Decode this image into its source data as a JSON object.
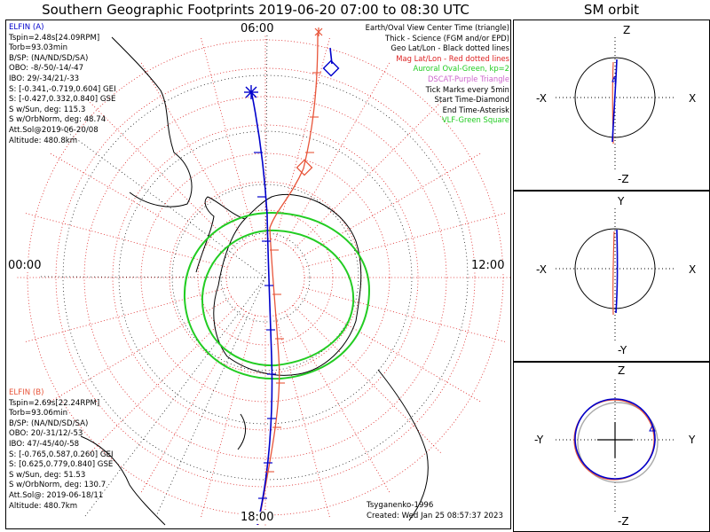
{
  "header": {
    "title": "Southern Geographic Footprints 2019-06-20 07:00 to 08:30 UTC",
    "sm_title": "SM orbit"
  },
  "map": {
    "mlt_labels": {
      "top": "06:00",
      "left": "00:00",
      "right": "12:00",
      "bottom": "18:00"
    },
    "colors": {
      "elfin_a": "#0000cc",
      "elfin_b": "#e8553a",
      "auroral_oval": "#22cc22",
      "mag_grid": "#dd2222",
      "geo_grid": "#000000",
      "land": "#000000"
    }
  },
  "elfin_a": {
    "name": "ELFIN (A)",
    "lines": [
      "Tspin=2.48s[24.09RPM]",
      "Torb=93.03min",
      "B/SP: (NA/ND/SD/SA)",
      "OBO: -8/-50/-14/-47",
      "IBO: 29/-34/21/-33",
      "S: [-0.341,-0.719,0.604] GEI",
      "S: [-0.427,0.332,0.840] GSE",
      "S w/Sun, deg: 115.3",
      "S w/OrbNorm, deg: 48.74",
      "Att.Sol@2019-06-20/08",
      "Altitude: 480.8km"
    ]
  },
  "elfin_b": {
    "name": "ELFIN (B)",
    "lines": [
      "Tspin=2.69s[22.24RPM]",
      "Torb=93.06min",
      "B/SP: (NA/ND/SD/SA)",
      "OBO: 20/-31/12/-53",
      "IBO: 47/-45/40/-58",
      "S: [-0.765,0.587,0.260] GEI",
      "S: [0.625,0.779,0.840] GSE",
      "S w/Sun, deg: 51.53",
      "S w/OrbNorm, deg: 130.7",
      "Att.Sol@: 2019-06-18/11",
      "Altitude: 480.7km"
    ]
  },
  "legend": [
    {
      "text": "Earth/Oval View Center Time (triangle)",
      "color": "#000000"
    },
    {
      "text": "Thick - Science (FGM and/or EPD)",
      "color": "#000000"
    },
    {
      "text": "Geo Lat/Lon - Black dotted lines",
      "color": "#000000"
    },
    {
      "text": "Mag Lat/Lon - Red dotted lines",
      "color": "#dd2222"
    },
    {
      "text": "Auroral Oval-Green, kp=2",
      "color": "#22cc22"
    },
    {
      "text": "DSCAT-Purple Triangle",
      "color": "#cc66cc"
    },
    {
      "text": "Tick Marks every 5min",
      "color": "#000000"
    },
    {
      "text": "Start Time-Diamond",
      "color": "#000000"
    },
    {
      "text": "End Time-Asterisk",
      "color": "#000000"
    },
    {
      "text": "VLF-Green Square",
      "color": "#22cc22"
    }
  ],
  "credits": {
    "model": "Tsyganenko-1996",
    "created": "Created: Wed Jan 25 08:57:37 2023"
  },
  "sm_orbit": {
    "panel1": {
      "top": "Z",
      "bottom": "-Z",
      "left": "-X",
      "right": "X"
    },
    "panel2": {
      "top": "Y",
      "bottom": "-Y",
      "left": "-X",
      "right": "X"
    },
    "panel3": {
      "top": "Z",
      "bottom": "-Z",
      "left": "-Y",
      "right": "Y"
    }
  }
}
